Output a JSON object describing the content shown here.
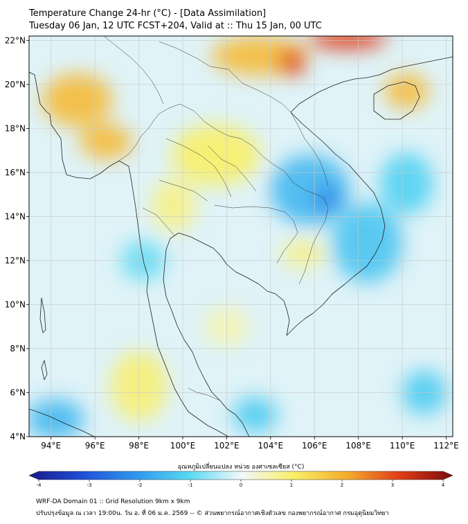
{
  "title": {
    "line1": "Temperature Change 24-hr (°C) - [Data Assimilation]",
    "line2": "Tuesday 06 Jan, 12 UTC FCST+204, Valid at :: Thu 15 Jan, 00 UTC"
  },
  "map": {
    "lon_range": [
      93,
      112.3
    ],
    "lat_range": [
      4,
      22.2
    ],
    "lon_ticks": [
      {
        "value": 94,
        "label": "94°E"
      },
      {
        "value": 96,
        "label": "96°E"
      },
      {
        "value": 98,
        "label": "98°E"
      },
      {
        "value": 100,
        "label": "100°E"
      },
      {
        "value": 102,
        "label": "102°E"
      },
      {
        "value": 104,
        "label": "104°E"
      },
      {
        "value": 106,
        "label": "106°E"
      },
      {
        "value": 108,
        "label": "108°E"
      },
      {
        "value": 110,
        "label": "110°E"
      },
      {
        "value": 112,
        "label": "112°E"
      }
    ],
    "lat_ticks": [
      {
        "value": 4,
        "label": "4°N"
      },
      {
        "value": 6,
        "label": "6°N"
      },
      {
        "value": 8,
        "label": "8°N"
      },
      {
        "value": 10,
        "label": "10°N"
      },
      {
        "value": 12,
        "label": "12°N"
      },
      {
        "value": 14,
        "label": "14°N"
      },
      {
        "value": 16,
        "label": "16°N"
      },
      {
        "value": 18,
        "label": "18°N"
      },
      {
        "value": 20,
        "label": "20°N"
      },
      {
        "value": 22,
        "label": "22°N"
      }
    ],
    "anomaly_blobs": [
      {
        "lon": 103.5,
        "lat": 21.3,
        "rx": 2.2,
        "ry": 0.9,
        "value": 1.8
      },
      {
        "lon": 105.0,
        "lat": 21.0,
        "rx": 0.6,
        "ry": 0.6,
        "value": 3.0
      },
      {
        "lon": 107.5,
        "lat": 22.1,
        "rx": 1.8,
        "ry": 0.5,
        "value": 3.0
      },
      {
        "lon": 110.2,
        "lat": 19.7,
        "rx": 1.0,
        "ry": 0.8,
        "value": 1.8
      },
      {
        "lon": 95.2,
        "lat": 19.3,
        "rx": 1.6,
        "ry": 1.2,
        "value": 1.8
      },
      {
        "lon": 96.5,
        "lat": 17.4,
        "rx": 1.2,
        "ry": 0.8,
        "value": 1.8
      },
      {
        "lon": 101.5,
        "lat": 16.8,
        "rx": 2.0,
        "ry": 1.4,
        "value": 1.0
      },
      {
        "lon": 99.6,
        "lat": 14.5,
        "rx": 1.0,
        "ry": 1.2,
        "value": 0.8
      },
      {
        "lon": 105.5,
        "lat": 12.3,
        "rx": 1.0,
        "ry": 0.6,
        "value": 0.8
      },
      {
        "lon": 105.8,
        "lat": 15.2,
        "rx": 1.8,
        "ry": 1.6,
        "value": -1.5
      },
      {
        "lon": 106.6,
        "lat": 14.8,
        "rx": 0.6,
        "ry": 0.5,
        "value": -2.4
      },
      {
        "lon": 108.4,
        "lat": 12.8,
        "rx": 1.6,
        "ry": 1.8,
        "value": -1.3
      },
      {
        "lon": 110.2,
        "lat": 15.5,
        "rx": 1.2,
        "ry": 1.4,
        "value": -1.1
      },
      {
        "lon": 94.2,
        "lat": 4.8,
        "rx": 1.3,
        "ry": 0.9,
        "value": -1.5
      },
      {
        "lon": 98.2,
        "lat": 12.0,
        "rx": 1.0,
        "ry": 0.9,
        "value": -0.9
      },
      {
        "lon": 103.3,
        "lat": 5.0,
        "rx": 1.0,
        "ry": 0.8,
        "value": -1.2
      },
      {
        "lon": 111.0,
        "lat": 6.0,
        "rx": 1.0,
        "ry": 1.0,
        "value": -1.2
      },
      {
        "lon": 98.0,
        "lat": 6.3,
        "rx": 1.3,
        "ry": 1.6,
        "value": 0.9
      },
      {
        "lon": 102.0,
        "lat": 9.0,
        "rx": 1.0,
        "ry": 0.9,
        "value": 0.5
      }
    ]
  },
  "colorbar": {
    "label": "อุณหภูมิเปลี่ยนแปลง หน่วย องศาเซลเซียส (°C)",
    "min": -4,
    "max": 4,
    "ticks": [
      "-4",
      "-3",
      "-2",
      "-1",
      "0",
      "1",
      "2",
      "3",
      "4"
    ],
    "stops": [
      "#1a1a8c",
      "#1f4fd6",
      "#2f96ee",
      "#55d8f2",
      "#f2f8fb",
      "#f8ef66",
      "#f4ad2c",
      "#e03c17",
      "#7c0b0b"
    ]
  },
  "footer": {
    "line1": "WRF-DA Domain 01 :: Grid Resolution 9km x 9km",
    "line2": "ปรับปรุงข้อมูล ณ เวลา 19:00น. วัน อ. ที่ 06 ม.ค. 2569 -- © ส่วนพยากรณ์อากาศเชิงตัวเลข กองพยากรณ์อากาศ กรมอุตุนิยมวิทยา"
  }
}
